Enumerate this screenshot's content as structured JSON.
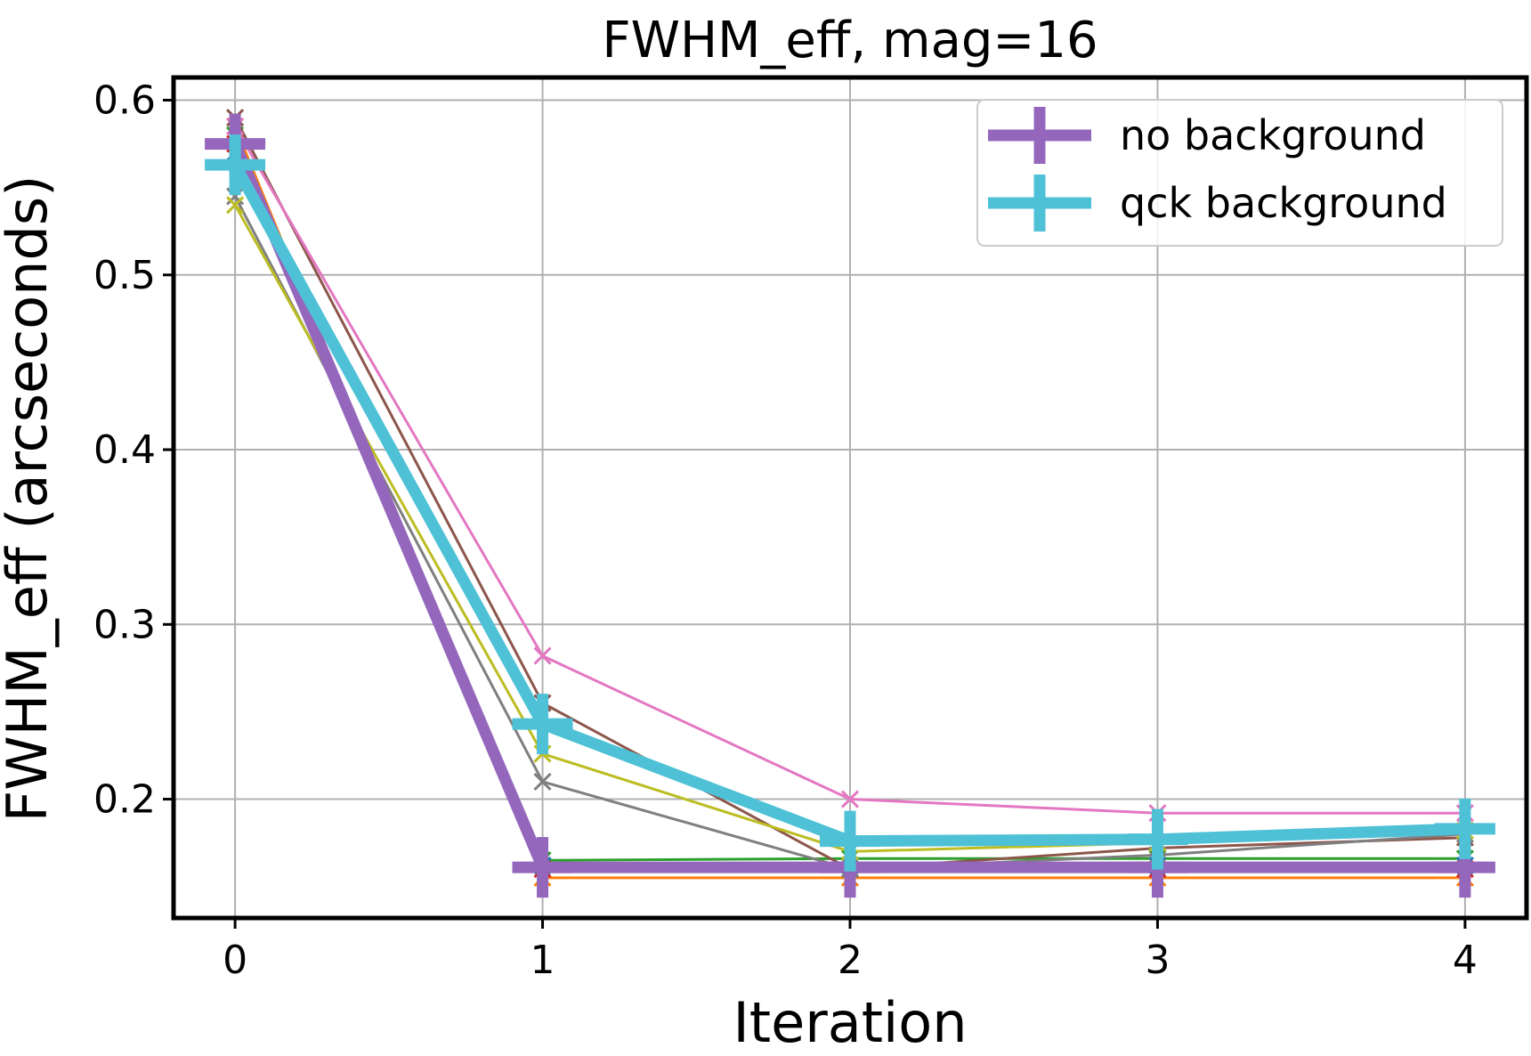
{
  "chart_data": {
    "type": "line",
    "title": "FWHM_eff, mag=16",
    "xlabel": "Iteration",
    "ylabel": "FWHM_eff (arcseconds)",
    "xlim": [
      -0.2,
      4.2
    ],
    "ylim": [
      0.132,
      0.613
    ],
    "xticks": [
      0,
      1,
      2,
      3,
      4
    ],
    "yticks": [
      0.2,
      0.3,
      0.4,
      0.5,
      0.6
    ],
    "grid": true,
    "legend_position": "top-right",
    "x": [
      0,
      1,
      2,
      3,
      4
    ],
    "series": [
      {
        "values": [
          0.585,
          0.155,
          0.155,
          0.155,
          0.155
        ],
        "color": "#ff7f0e",
        "marker": "x",
        "thick": false
      },
      {
        "values": [
          0.58,
          0.165,
          0.166,
          0.166,
          0.166
        ],
        "color": "#2ca02c",
        "marker": "x",
        "thick": false
      },
      {
        "values": [
          0.575,
          0.16,
          0.16,
          0.16,
          0.16
        ],
        "color": "#d62728",
        "marker": "x",
        "thick": false
      },
      {
        "values": [
          0.57,
          0.162,
          0.162,
          0.162,
          0.162
        ],
        "color": "#1f77b4",
        "marker": "x",
        "thick": false
      },
      {
        "values": [
          0.59,
          0.255,
          0.16,
          0.172,
          0.178
        ],
        "color": "#8c564b",
        "marker": "x",
        "thick": false
      },
      {
        "values": [
          0.585,
          0.282,
          0.2,
          0.192,
          0.192
        ],
        "color": "#e377c2",
        "marker": "x",
        "thick": false
      },
      {
        "values": [
          0.545,
          0.21,
          0.16,
          0.168,
          0.18
        ],
        "color": "#7f7f7f",
        "marker": "x",
        "thick": false
      },
      {
        "values": [
          0.54,
          0.226,
          0.17,
          0.175,
          0.182
        ],
        "color": "#bcbd22",
        "marker": "x",
        "thick": false
      },
      {
        "name": "no background",
        "values": [
          0.575,
          0.161,
          0.161,
          0.161,
          0.161
        ],
        "color": "#9467bd",
        "marker": "+",
        "thick": true
      },
      {
        "name": "qck background",
        "values": [
          0.563,
          0.243,
          0.176,
          0.177,
          0.183
        ],
        "color": "#4fc1d6",
        "marker": "+",
        "thick": true
      }
    ]
  }
}
